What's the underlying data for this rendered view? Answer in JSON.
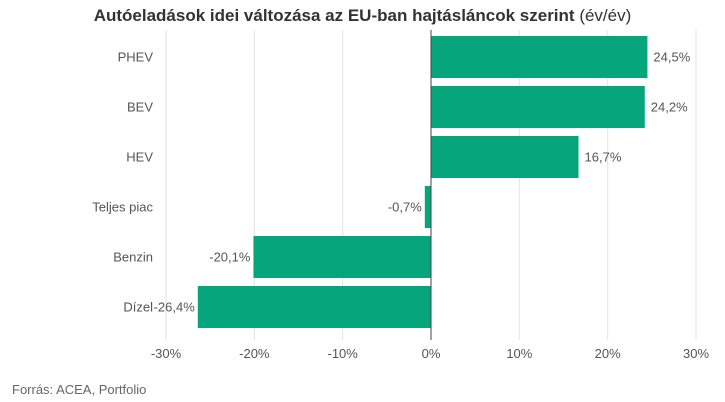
{
  "title_main": "Autóeladások idei változása az EU-ban hajtásláncok szerint",
  "title_suffix": "(év/év)",
  "source": "Forrás: ACEA, Portfolio",
  "chart_data": {
    "type": "bar",
    "orientation": "horizontal",
    "categories": [
      "PHEV",
      "BEV",
      "HEV",
      "Teljes piac",
      "Benzin",
      "Dízel"
    ],
    "values": [
      24.5,
      24.2,
      16.7,
      -0.7,
      -20.1,
      -26.4
    ],
    "value_labels": [
      "24,5%",
      "24,2%",
      "16,7%",
      "-0,7%",
      "-20,1%",
      "-26,4%"
    ],
    "xlim": [
      -30,
      30
    ],
    "xticks": [
      -30,
      -20,
      -10,
      0,
      10,
      20,
      30
    ],
    "xtick_labels": [
      "-30%",
      "-20%",
      "-10%",
      "0%",
      "10%",
      "20%",
      "30%"
    ],
    "grid": true,
    "bar_color": "#07a57b"
  }
}
